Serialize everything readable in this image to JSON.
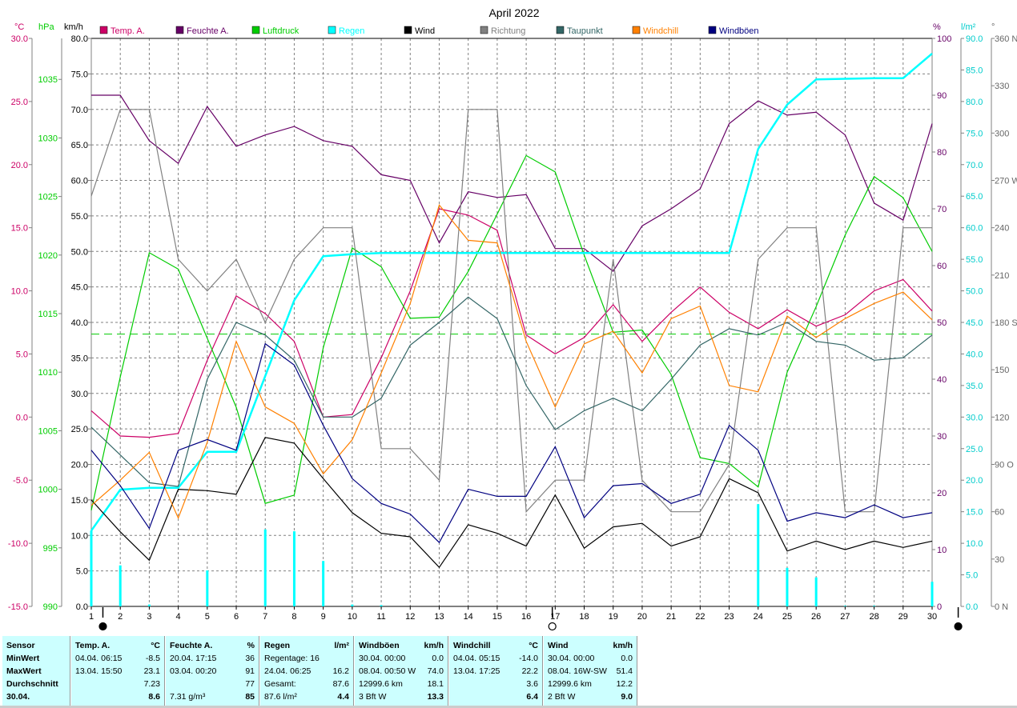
{
  "chart_data": {
    "type": "line",
    "title": "April 2022",
    "x": [
      1,
      2,
      3,
      4,
      5,
      6,
      7,
      8,
      9,
      10,
      11,
      12,
      13,
      14,
      15,
      16,
      17,
      18,
      19,
      20,
      21,
      22,
      23,
      24,
      25,
      26,
      27,
      28,
      29,
      30
    ],
    "x_ticks": [
      "1",
      "2",
      "3",
      "4",
      "5",
      "6",
      "7",
      "8",
      "9",
      "10",
      "11",
      "12",
      "13",
      "14",
      "15",
      "16",
      "17",
      "18",
      "19",
      "20",
      "21",
      "22",
      "23",
      "24",
      "25",
      "26",
      "27",
      "28",
      "29",
      "30"
    ],
    "axes": {
      "temp": {
        "unit": "°C",
        "ticks": [
          "30.0",
          "25.0",
          "20.0",
          "15.0",
          "10.0",
          "5.0",
          "0.0",
          "-5.0",
          "-10.0",
          "-15.0"
        ],
        "ylim": [
          -15,
          30
        ],
        "color": "#cc0066"
      },
      "pressure": {
        "unit": "hPa",
        "ticks": [
          "1035",
          "1030",
          "1025",
          "1020",
          "1015",
          "1010",
          "1005",
          "1000",
          "995",
          "990"
        ],
        "ylim": [
          990,
          1038.5
        ],
        "color": "#00cc00"
      },
      "speed": {
        "unit": "km/h",
        "ticks": [
          "80.0",
          "75.0",
          "70.0",
          "65.0",
          "60.0",
          "55.0",
          "50.0",
          "45.0",
          "40.0",
          "35.0",
          "30.0",
          "25.0",
          "20.0",
          "15.0",
          "10.0",
          "5.0",
          "0.0"
        ],
        "ylim": [
          0,
          80
        ],
        "color": "#000000"
      },
      "humidity": {
        "unit": "%",
        "ticks": [
          "100",
          "90",
          "80",
          "70",
          "60",
          "50",
          "40",
          "30",
          "20",
          "10",
          "0"
        ],
        "ylim": [
          0,
          100
        ],
        "color": "#660066"
      },
      "rain": {
        "unit": "l/m²",
        "ticks": [
          "90.0",
          "85.0",
          "80.0",
          "75.0",
          "70.0",
          "65.0",
          "60.0",
          "55.0",
          "50.0",
          "45.0",
          "40.0",
          "35.0",
          "30.0",
          "25.0",
          "20.0",
          "15.0",
          "10.0",
          "5.0",
          "0.0"
        ],
        "ylim": [
          0,
          90
        ],
        "color": "#00cccc"
      },
      "direction": {
        "unit": "°",
        "ticks": [
          "360 N",
          "330",
          "300",
          "270 W",
          "240",
          "210",
          "180 S",
          "150",
          "120",
          "90 O",
          "60",
          "30",
          "0 N"
        ],
        "ylim": [
          0,
          360
        ],
        "color": "#666666"
      }
    },
    "series": [
      {
        "name": "Temp. A.",
        "color": "#cc0066",
        "axis": "temp",
        "values": [
          0.5,
          -1.5,
          -1.6,
          -1.3,
          4.5,
          9.6,
          8.2,
          6.0,
          0.0,
          0.2,
          4.7,
          10.0,
          16.5,
          16.0,
          14.8,
          6.5,
          5.0,
          6.3,
          8.9,
          6.0,
          8.3,
          10.3,
          8.3,
          7.0,
          8.5,
          7.2,
          8.1,
          10.0,
          10.9,
          8.4
        ]
      },
      {
        "name": "Feuchte A.",
        "color": "#660066",
        "axis": "humidity",
        "values": [
          90,
          90,
          82,
          78,
          88,
          81,
          83,
          84.5,
          82,
          81,
          76,
          75,
          64,
          73,
          72,
          72.5,
          63,
          63,
          59,
          67,
          70,
          73.5,
          85,
          89,
          86.5,
          87,
          83,
          71,
          68,
          85
        ]
      },
      {
        "name": "Luftdruck",
        "color": "#00cc00",
        "axis": "pressure",
        "values": [
          998.2,
          1009.6,
          1020.2,
          1018.8,
          1012.9,
          1007.0,
          998.8,
          999.5,
          1012.1,
          1020.6,
          1019.0,
          1014.6,
          1014.7,
          1018.6,
          1023.5,
          1028.5,
          1027.1,
          1020.0,
          1013.4,
          1013.6,
          1009.8,
          1002.7,
          1002.2,
          1000.2,
          1010.0,
          1015.6,
          1021.7,
          1026.7,
          1024.9,
          1020.3
        ]
      },
      {
        "name": "Regen",
        "color": "#00ffff",
        "axis": "rain",
        "values": [
          12.0,
          18.5,
          18.8,
          18.8,
          24.5,
          24.5,
          36.5,
          48.5,
          55.5,
          55.8,
          56.0,
          56.0,
          56.0,
          56.0,
          56.0,
          56.0,
          56.0,
          56.0,
          56.0,
          56.0,
          56.0,
          56.0,
          56.0,
          72.5,
          79.5,
          83.5,
          83.6,
          83.7,
          83.7,
          87.6
        ]
      },
      {
        "name": "Regen (täglich)",
        "color": "#00ffff",
        "axis": "rain",
        "values": [
          12.0,
          6.5,
          0.3,
          0,
          5.7,
          0,
          12.2,
          11.9,
          7.2,
          0.3,
          0.2,
          0,
          0,
          0,
          0,
          0,
          0,
          0,
          0,
          0,
          0,
          0,
          0,
          16.2,
          6.1,
          4.6,
          0.1,
          0.1,
          0,
          3.9
        ]
      },
      {
        "name": "Wind",
        "color": "#000000",
        "axis": "speed",
        "values": [
          15.0,
          10.5,
          6.5,
          16.5,
          16.3,
          15.8,
          23.8,
          23.0,
          18.0,
          13.2,
          10.3,
          9.8,
          5.5,
          11.5,
          10.3,
          8.5,
          15.7,
          8.2,
          11.2,
          11.7,
          8.5,
          9.8,
          18.0,
          16.0,
          7.8,
          9.2,
          8.0,
          9.2,
          8.3,
          9.2
        ]
      },
      {
        "name": "Richtung",
        "color": "#808080",
        "axis": "direction",
        "values": [
          260,
          315,
          315,
          220,
          200,
          220,
          180,
          220,
          240,
          240,
          100,
          100,
          80,
          315,
          315,
          60,
          80,
          80,
          220,
          80,
          60,
          60,
          90,
          220,
          240,
          240,
          60,
          60,
          240,
          240
        ]
      },
      {
        "name": "Taupunkt",
        "color": "#336666",
        "axis": "temp",
        "values": [
          -0.8,
          -3.0,
          -5.2,
          -5.5,
          3.0,
          7.5,
          6.5,
          4.5,
          0.0,
          0.0,
          1.5,
          5.7,
          7.5,
          9.5,
          7.8,
          2.5,
          -1.0,
          0.5,
          1.5,
          0.5,
          3.0,
          5.7,
          7.0,
          6.5,
          7.5,
          6.0,
          5.7,
          4.5,
          4.7,
          6.5
        ]
      },
      {
        "name": "Windchill",
        "color": "#ff8000",
        "axis": "temp",
        "values": [
          -7.0,
          -5.0,
          -2.8,
          -8.0,
          -2.0,
          6.0,
          0.8,
          -0.5,
          -4.5,
          -1.8,
          3.5,
          9.0,
          16.8,
          14.0,
          13.8,
          6.0,
          0.8,
          5.8,
          6.8,
          3.5,
          7.8,
          8.8,
          2.5,
          2.0,
          8.0,
          6.3,
          7.8,
          9.0,
          9.9,
          7.7
        ]
      },
      {
        "name": "Windböen",
        "color": "#000080",
        "axis": "speed",
        "values": [
          22.0,
          17.0,
          11.0,
          22.0,
          23.5,
          22.0,
          37.0,
          34.0,
          25.5,
          18.0,
          14.5,
          13.0,
          9.0,
          16.5,
          15.5,
          15.5,
          22.5,
          12.5,
          17.0,
          17.3,
          14.5,
          15.8,
          25.5,
          22.0,
          12.0,
          13.2,
          12.5,
          14.3,
          12.5,
          13.2
        ]
      }
    ],
    "reference_line": {
      "axis": "pressure",
      "value": 1013.25,
      "color": "#00cc00",
      "style": "dashed"
    },
    "legend_placement": "top",
    "grid": true,
    "moon_phases": [
      {
        "day": 1.4,
        "phase": "new"
      },
      {
        "day": 16.9,
        "phase": "full"
      },
      {
        "day": 30.9,
        "phase": "new"
      }
    ]
  },
  "labels": {
    "title": "April 2022",
    "unit_temp": "°C",
    "unit_pressure": "hPa",
    "unit_speed": "km/h",
    "unit_humidity": "%",
    "unit_rain": "l/m²",
    "unit_direction": "°"
  },
  "table": {
    "sensor": {
      "h": "Sensor",
      "min": "MinWert",
      "max": "MaxWert",
      "avg": "Durchschnitt",
      "date": "30.04."
    },
    "temp": {
      "h": "Temp. A.",
      "u": "°C",
      "min_t": "04.04.  06:15",
      "min_v": "-8.5",
      "max_t": "13.04.  15:50",
      "max_v": "23.1",
      "avg": "7.23",
      "cur": "8.6"
    },
    "hum": {
      "h": "Feuchte A.",
      "u": "%",
      "min_t": "20.04.  17:15",
      "min_v": "36",
      "max_t": "03.04.  00:20",
      "max_v": "91",
      "avg": "77",
      "abs": "7.31 g/m³",
      "cur": "85"
    },
    "rain": {
      "h": "Regen",
      "u": "l/m²",
      "r1a": "Regentage: 16",
      "r2a": "24.04.  06:25",
      "r2b": "16.2",
      "r3a": "Gesamt:",
      "r3b": "87.6",
      "r4a": "87.6 l/m²",
      "cur": "4.4"
    },
    "gust": {
      "h": "Windböen",
      "u": "km/h",
      "r1a": "30.04.  00:00",
      "r1b": "0.0",
      "r2a": "08.04.  00:50  W",
      "r2b": "74.0",
      "r3a": "12999.6 km",
      "r3b": "18.1",
      "r4a": "3 Bft W",
      "cur": "13.3"
    },
    "chill": {
      "h": "Windchill",
      "u": "°C",
      "min_t": "04.04.  05:15",
      "min_v": "-14.0",
      "max_t": "13.04.  17:25",
      "max_v": "22.2",
      "avg": "3.6",
      "cur": "6.4"
    },
    "wind": {
      "h": "Wind",
      "u": "km/h",
      "r1a": "30.04.  00:00",
      "r1b": "0.0",
      "r2a": "08.04.  16W-SW",
      "r2b": "51.4",
      "r3a": "12999.6 km",
      "r3b": "12.2",
      "r4a": "2 Bft W",
      "cur": "9.0"
    }
  }
}
